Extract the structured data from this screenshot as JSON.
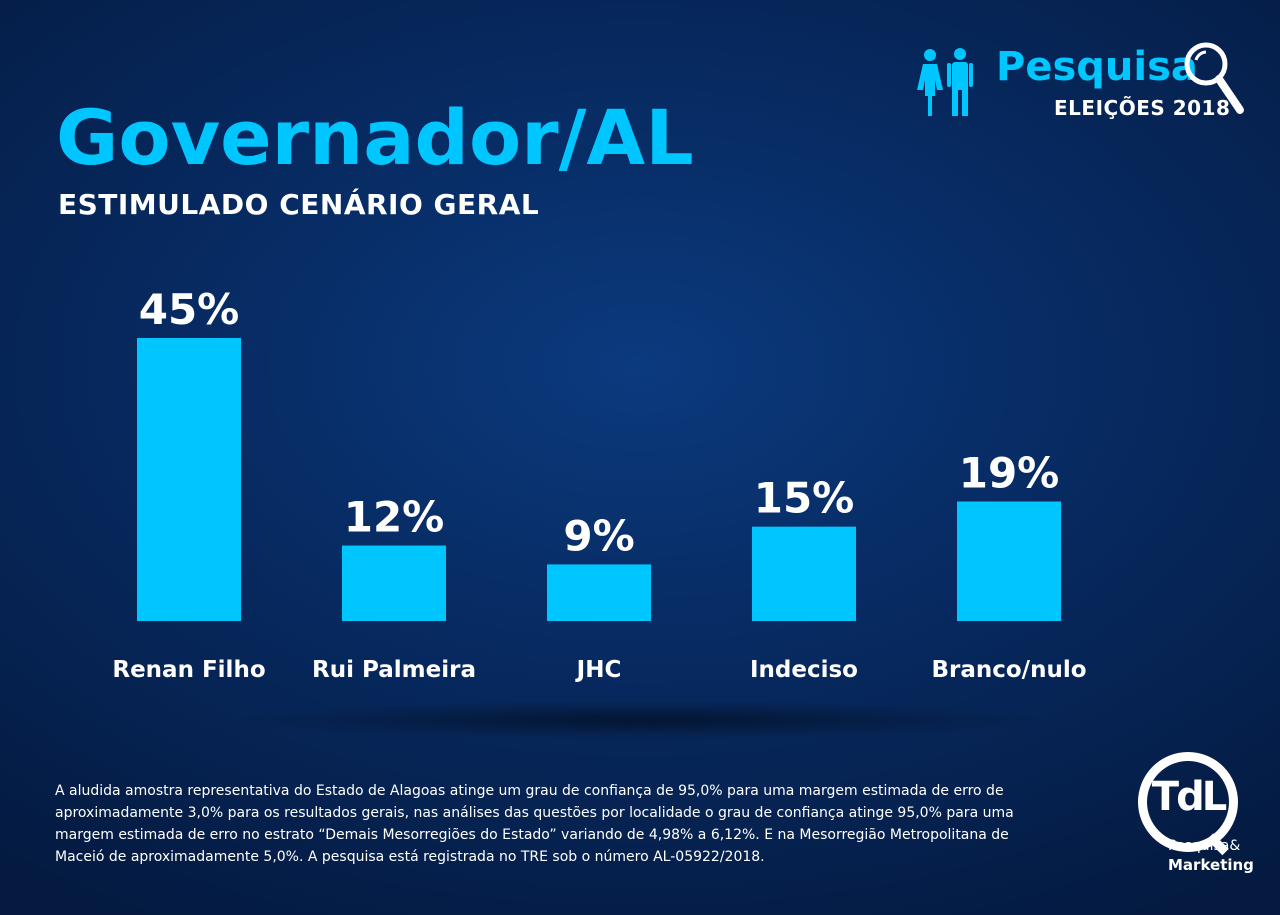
{
  "header": {
    "title": "Governador/AL",
    "subtitle": "ESTIMULADO CENÁRIO GERAL"
  },
  "badge": {
    "brand": "Pesquisa",
    "edition": "ELEIÇÕES 2018",
    "icons": [
      "people-icon",
      "magnifier-icon"
    ]
  },
  "chart_data": {
    "type": "bar",
    "title": "Governador/AL",
    "subtitle": "ESTIMULADO CENÁRIO GERAL",
    "categories": [
      "Renan Filho",
      "Rui Palmeira",
      "JHC",
      "Indeciso",
      "Branco/nulo"
    ],
    "values": [
      45,
      12,
      9,
      15,
      19
    ],
    "value_labels": [
      "45%",
      "12%",
      "9%",
      "15%",
      "19%"
    ],
    "unit": "%",
    "xlabel": "",
    "ylabel": "",
    "ylim": [
      0,
      45
    ],
    "grid": false,
    "legend": "none",
    "bar_color": "#00c6ff"
  },
  "footnote": "A aludida  amostra representativa do Estado de Alagoas  atinge um grau de confiança de 95,0% para uma margem estimada de erro de aproximadamente 3,0% para os resultados gerais, nas análises das questões por localidade o grau de confiança atinge 95,0% para uma margem estimada de erro no estrato “Demais Mesorregiões do Estado” variando de  4,98%  a 6,12%. E  na Mesorregião Metropolitana de Maceió  de aproximadamente 5,0%. A pesquisa está registrada no TRE sob o número AL-05922/2018.",
  "logo": {
    "mark": "TdL",
    "line1": "Pesquisa&",
    "line2": "Marketing"
  },
  "colors": {
    "accent": "#00c6ff",
    "background": "#072a61",
    "text": "#ffffff"
  }
}
